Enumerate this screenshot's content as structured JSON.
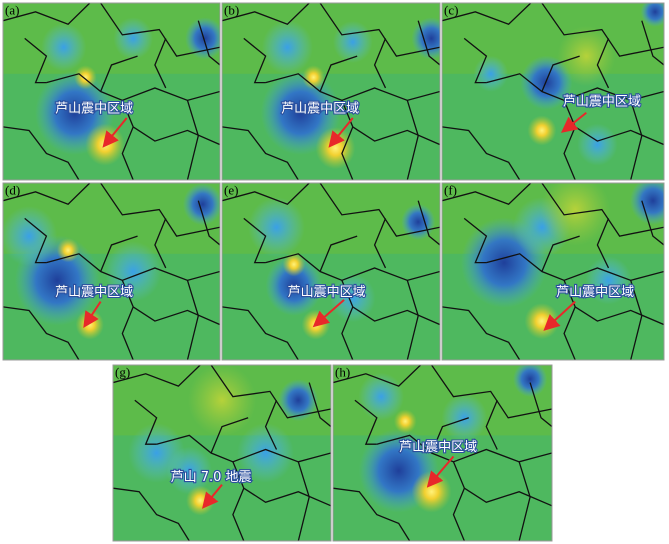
{
  "panels": [
    {
      "label": "(a)",
      "annotation": "芦山震中区域"
    },
    {
      "label": "(b)",
      "annotation": "芦山震中区域"
    },
    {
      "label": "(c)",
      "annotation": "芦山震中区域"
    },
    {
      "label": "(d)",
      "annotation": "芦山震中区域"
    },
    {
      "label": "(e)",
      "annotation": "芦山震中区域"
    },
    {
      "label": "(f)",
      "annotation": "芦山震中区域"
    },
    {
      "label": "(g)",
      "annotation": "芦山 7.0 地震"
    },
    {
      "label": "(h)",
      "annotation": "芦山震中区域"
    }
  ]
}
